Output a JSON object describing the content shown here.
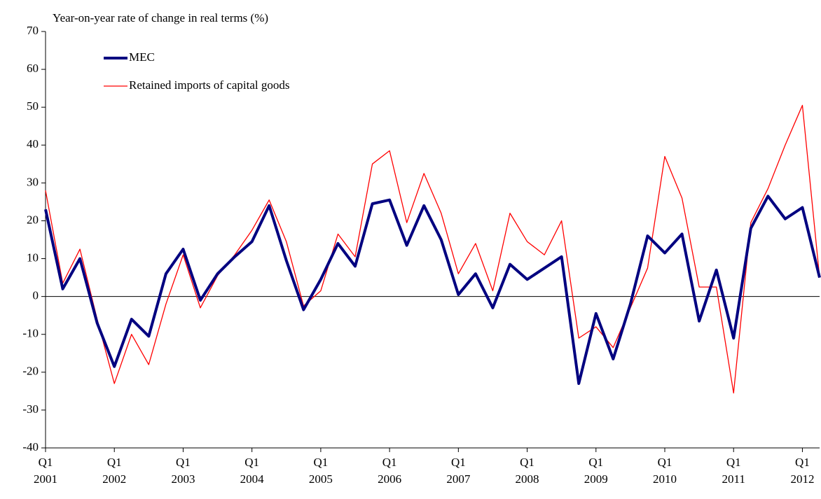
{
  "chart_data": {
    "type": "line",
    "y_axis_title": "Year-on-year rate of change in real terms (%)",
    "categories": [
      "Q1",
      null,
      null,
      null,
      "Q1",
      null,
      null,
      null,
      "Q1",
      null,
      null,
      null,
      "Q1",
      null,
      null,
      null,
      "Q1",
      null,
      null,
      null,
      "Q1",
      null,
      null,
      null,
      "Q1",
      null,
      null,
      null,
      "Q1",
      null,
      null,
      null,
      "Q1",
      null,
      null,
      null,
      "Q1",
      null,
      null,
      null,
      "Q1",
      null,
      null,
      null,
      "Q1",
      null
    ],
    "years": [
      "2001",
      "2002",
      "2003",
      "2004",
      "2005",
      "2006",
      "2007",
      "2008",
      "2009",
      "2010",
      "2011",
      "2012"
    ],
    "series": [
      {
        "name": "MEC",
        "color": "#000080",
        "width": 4,
        "values": [
          23,
          2,
          10,
          -7,
          -18.5,
          -6,
          -10.5,
          6,
          12.5,
          -1,
          6,
          10.5,
          14.5,
          24,
          9.5,
          -3.5,
          4.5,
          14,
          8,
          24.5,
          25.5,
          13.5,
          24,
          15,
          0.5,
          6,
          -3,
          8.5,
          4.5,
          7.5,
          10.5,
          -23,
          -4.5,
          -16.5,
          -2,
          16,
          11.5,
          16.5,
          -6.5,
          7,
          -11,
          18,
          26.5,
          20.5,
          23.5,
          5
        ]
      },
      {
        "name": "Retained imports of capital goods",
        "color": "#ff0000",
        "width": 1.3,
        "values": [
          28,
          3.5,
          12.5,
          -6,
          -23,
          -10,
          -18,
          -2,
          11,
          -3,
          5.5,
          11,
          17.5,
          25.5,
          14.5,
          -2.5,
          1.5,
          16.5,
          10.5,
          35,
          38.5,
          19.5,
          32.5,
          22,
          6,
          14,
          1.5,
          22,
          14.5,
          11,
          20,
          -11,
          -8,
          -13.5,
          -3,
          7.5,
          37,
          26,
          2.5,
          2.5,
          -25.5,
          19.5,
          28.5,
          40,
          50.5,
          5
        ]
      }
    ],
    "ylim": [
      -40,
      70
    ],
    "yticks": [
      -40,
      -30,
      -20,
      -10,
      0,
      10,
      20,
      30,
      40,
      50,
      60,
      70
    ]
  }
}
